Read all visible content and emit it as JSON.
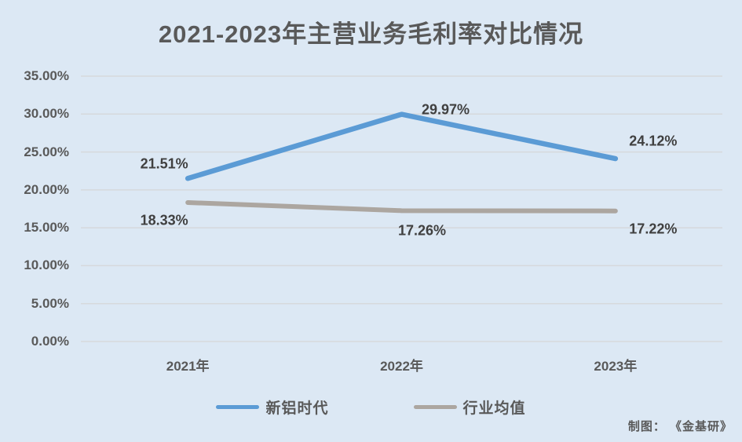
{
  "page": {
    "background_color": "#DCE8F4",
    "title_color": "#595959",
    "gridline_color": "#D6D9DC"
  },
  "credit": "制图： 《金基研》",
  "chart_data": {
    "type": "line",
    "title": "2021-2023年主营业务毛利率对比情况",
    "categories": [
      "2021年",
      "2022年",
      "2023年"
    ],
    "series": [
      {
        "name": "新铝时代",
        "color": "#5B9BD5",
        "values": [
          21.51,
          29.97,
          24.12
        ],
        "labels": [
          "21.51%",
          "29.97%",
          "24.12%"
        ],
        "label_offsets": [
          [
            -30,
            -18
          ],
          [
            56,
            -6
          ],
          [
            48,
            -22
          ]
        ]
      },
      {
        "name": "行业均值",
        "color": "#ACA6A0",
        "values": [
          18.33,
          17.26,
          17.22
        ],
        "labels": [
          "18.33%",
          "17.26%",
          "17.22%"
        ],
        "label_offsets": [
          [
            -30,
            23
          ],
          [
            26,
            26
          ],
          [
            48,
            23
          ]
        ]
      }
    ],
    "y_axis": {
      "min": 0,
      "max": 35,
      "step": 5,
      "tick_labels": [
        "0.00%",
        "5.00%",
        "10.00%",
        "15.00%",
        "20.00%",
        "25.00%",
        "30.00%",
        "35.00%"
      ]
    },
    "x_label": "",
    "y_label": "",
    "grid": true,
    "legend_position": "bottom",
    "markers": false
  }
}
